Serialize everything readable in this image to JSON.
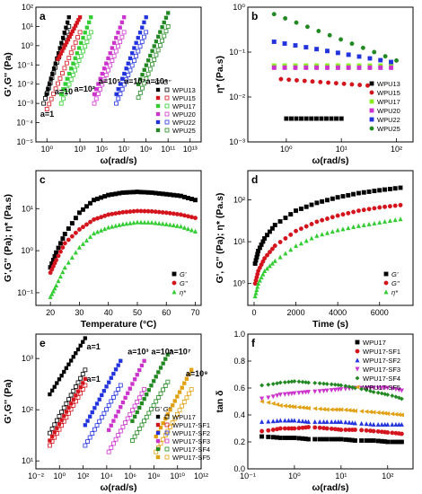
{
  "figure": {
    "panels": [
      "a",
      "b",
      "c",
      "d",
      "e",
      "f"
    ]
  },
  "chart_data": [
    {
      "panel": "a",
      "type": "scatter",
      "xlabel": "ω(rad/s)",
      "ylabel": "G',G'' (Pa)",
      "xscale": "log",
      "yscale": "log",
      "xlim": [
        0.1,
        100000000000000.0
      ],
      "ylim": [
        1e-05,
        100
      ],
      "xticks": [
        {
          "v": 1,
          "t": "10⁰"
        },
        {
          "v": 1000,
          "t": "10³"
        },
        {
          "v": 100000.0,
          "t": "10⁵"
        },
        {
          "v": 10000000.0,
          "t": "10⁷"
        },
        {
          "v": 1000000000.0,
          "t": "10⁹"
        },
        {
          "v": 100000000000.0,
          "t": "10¹¹"
        },
        {
          "v": 10000000000000.0,
          "t": "10¹³"
        }
      ],
      "yticks": [
        {
          "v": 1e-05,
          "t": "10⁻⁵"
        },
        {
          "v": 0.0001,
          "t": "10⁻⁴"
        },
        {
          "v": 0.001,
          "t": "10⁻³"
        },
        {
          "v": 0.01,
          "t": "10⁻²"
        },
        {
          "v": 0.1,
          "t": "10⁻¹"
        },
        {
          "v": 1,
          "t": "10⁰"
        },
        {
          "v": 10,
          "t": "10¹"
        },
        {
          "v": 100,
          "t": "10²"
        }
      ],
      "legend": {
        "position": "right",
        "headers": [
          "G'",
          "G''"
        ]
      },
      "annotations": [
        {
          "text": "a=1",
          "x": 0.25,
          "y": 0.0002
        },
        {
          "text": "a=10",
          "x": 5,
          "y": 0.003
        },
        {
          "text": "a=10²",
          "x": 300,
          "y": 0.004
        },
        {
          "text": "a=10⁵",
          "x": 50000.0,
          "y": 0.01
        },
        {
          "text": "a=10⁷",
          "x": 10000000.0,
          "y": 0.01
        },
        {
          "text": "a=10⁹",
          "x": 1000000000.0,
          "y": 0.01
        }
      ],
      "series": [
        {
          "name": "WPU13",
          "color": "#000000",
          "shift": 1,
          "gp": {
            "x0": 0.9,
            "x1": 100,
            "y0": 0.003,
            "y1": 30
          },
          "gpp": {
            "x0": 0.5,
            "x1": 100,
            "y0": 0.001,
            "y1": 10
          }
        },
        {
          "name": "WPU15",
          "color": "#d4141c",
          "shift": 10,
          "gp": {
            "x0": 1,
            "x1": 100,
            "y0": 0.2,
            "y1": 30
          },
          "gpp": {
            "x0": 0.1,
            "x1": 100,
            "y0": 0.0005,
            "y1": 5
          }
        },
        {
          "name": "WPU17",
          "color": "#33cc33",
          "shift": 100,
          "gp": {
            "x0": 0.2,
            "x1": 100,
            "y0": 0.003,
            "y1": 30
          },
          "gpp": {
            "x0": 0.2,
            "x1": 100,
            "y0": 0.001,
            "y1": 5
          }
        },
        {
          "name": "WPU20",
          "color": "#cc33cc",
          "shift": 100000,
          "gp": {
            "x0": 0.2,
            "x1": 100,
            "y0": 0.003,
            "y1": 30
          },
          "gpp": {
            "x0": 0.2,
            "x1": 100,
            "y0": 0.001,
            "y1": 5
          }
        },
        {
          "name": "WPU22",
          "color": "#2233dd",
          "shift": 10000000,
          "gp": {
            "x0": 0.2,
            "x1": 100,
            "y0": 0.003,
            "y1": 30
          },
          "gpp": {
            "x0": 0.2,
            "x1": 100,
            "y0": 0.001,
            "y1": 5
          }
        },
        {
          "name": "WPU25",
          "color": "#228822",
          "shift": 1000000000,
          "gp": {
            "x0": 0.2,
            "x1": 100,
            "y0": 0.01,
            "y1": 50
          },
          "gpp": {
            "x0": 0.2,
            "x1": 100,
            "y0": 0.002,
            "y1": 10
          }
        }
      ]
    },
    {
      "panel": "b",
      "type": "scatter",
      "xlabel": "ω(rad/s)",
      "ylabel": "η* (Pa.s)",
      "xscale": "log",
      "yscale": "log",
      "xlim": [
        0.2,
        200
      ],
      "ylim": [
        0.001,
        1
      ],
      "xticks": [
        {
          "v": 1,
          "t": "10⁰"
        },
        {
          "v": 10,
          "t": "10¹"
        },
        {
          "v": 100,
          "t": "10²"
        }
      ],
      "yticks": [
        {
          "v": 0.001,
          "t": "10⁻³"
        },
        {
          "v": 0.01,
          "t": "10⁻²"
        },
        {
          "v": 0.1,
          "t": "10⁻¹"
        },
        {
          "v": 1,
          "t": "10⁰"
        }
      ],
      "legend": {
        "position": "right"
      },
      "series": [
        {
          "name": "WPU13",
          "color": "#000000",
          "marker": "square",
          "x0": 1,
          "x1": 10,
          "y0": 0.0033,
          "y1": 0.0033
        },
        {
          "name": "WPU15",
          "color": "#d4141c",
          "marker": "circle",
          "x0": 0.8,
          "x1": 30,
          "y0": 0.025,
          "y1": 0.018
        },
        {
          "name": "WPU17",
          "color": "#88ee22",
          "marker": "square",
          "x0": 0.6,
          "x1": 80,
          "y0": 0.05,
          "y1": 0.05
        },
        {
          "name": "WPU20",
          "color": "#cc33cc",
          "marker": "square",
          "x0": 0.6,
          "x1": 80,
          "y0": 0.045,
          "y1": 0.045
        },
        {
          "name": "WPU22",
          "color": "#2233dd",
          "marker": "square",
          "x0": 0.6,
          "x1": 80,
          "y0": 0.17,
          "y1": 0.06
        },
        {
          "name": "WPU25",
          "color": "#228822",
          "marker": "circle",
          "x0": 0.6,
          "x1": 100,
          "y0": 0.7,
          "y1": 0.065
        }
      ]
    },
    {
      "panel": "c",
      "type": "scatter",
      "xlabel": "Temperature (°C)",
      "ylabel": "G',G'' (Pa); η* (Pa.s)",
      "xscale": "linear",
      "yscale": "log",
      "xlim": [
        15,
        72
      ],
      "ylim": [
        0.05,
        80
      ],
      "xticks": [
        {
          "v": 20,
          "t": "20"
        },
        {
          "v": 30,
          "t": "30"
        },
        {
          "v": 40,
          "t": "40"
        },
        {
          "v": 50,
          "t": "50"
        },
        {
          "v": 60,
          "t": "60"
        },
        {
          "v": 70,
          "t": "70"
        }
      ],
      "yticks": [
        {
          "v": 0.1,
          "t": "10⁻¹"
        },
        {
          "v": 1,
          "t": "10⁰"
        },
        {
          "v": 10,
          "t": "10¹"
        }
      ],
      "legend": {
        "position": "right"
      },
      "series": [
        {
          "name": "G'",
          "color": "#000000",
          "marker": "square",
          "x": [
            20,
            22,
            25,
            30,
            35,
            40,
            45,
            50,
            55,
            60,
            65,
            70
          ],
          "y": [
            0.4,
            0.9,
            2.5,
            8,
            16,
            21,
            24,
            25,
            24,
            22,
            20,
            16
          ]
        },
        {
          "name": "G''",
          "color": "#d4141c",
          "marker": "circle",
          "x": [
            20,
            22,
            25,
            30,
            35,
            40,
            45,
            50,
            55,
            60,
            65,
            70
          ],
          "y": [
            0.3,
            0.6,
            1.5,
            3.2,
            5.5,
            7.2,
            8.2,
            8.8,
            8.6,
            8.0,
            7.2,
            6.0
          ]
        },
        {
          "name": "η*",
          "color": "#33cc33",
          "marker": "triangle",
          "x": [
            20,
            22,
            25,
            30,
            35,
            40,
            45,
            50,
            55,
            60,
            65,
            70
          ],
          "y": [
            0.08,
            0.15,
            0.4,
            1.2,
            2.6,
            3.6,
            4.3,
            4.8,
            4.7,
            4.3,
            3.8,
            2.9
          ]
        }
      ]
    },
    {
      "panel": "d",
      "type": "scatter",
      "xlabel": "Time (s)",
      "ylabel": "G', G'' (Pa); η* (Pa.s)",
      "xscale": "linear",
      "yscale": "log",
      "xlim": [
        -300,
        7600
      ],
      "ylim": [
        0.3,
        500
      ],
      "xticks": [
        {
          "v": 0,
          "t": "0"
        },
        {
          "v": 2000,
          "t": "2000"
        },
        {
          "v": 4000,
          "t": "4000"
        },
        {
          "v": 6000,
          "t": "6000"
        }
      ],
      "yticks": [
        {
          "v": 1,
          "t": "10⁰"
        },
        {
          "v": 10,
          "t": "10¹"
        },
        {
          "v": 100,
          "t": "10²"
        }
      ],
      "legend": {
        "position": "bottom-right"
      },
      "series": [
        {
          "name": "G'",
          "color": "#000000",
          "marker": "square",
          "x": [
            50,
            200,
            500,
            1000,
            2000,
            3000,
            4000,
            5000,
            6000,
            7000
          ],
          "y": [
            3,
            6,
            12,
            25,
            55,
            85,
            115,
            145,
            170,
            195
          ]
        },
        {
          "name": "G''",
          "color": "#d4141c",
          "marker": "circle",
          "x": [
            50,
            200,
            500,
            1000,
            2000,
            3000,
            4000,
            5000,
            6000,
            7000
          ],
          "y": [
            1,
            2,
            4,
            8,
            18,
            30,
            42,
            55,
            66,
            75
          ]
        },
        {
          "name": "η*",
          "color": "#33cc33",
          "marker": "triangle",
          "x": [
            50,
            200,
            500,
            1000,
            2000,
            3000,
            4000,
            5000,
            6000,
            7000
          ],
          "y": [
            0.5,
            1,
            2,
            3.5,
            8,
            14,
            19,
            24,
            29,
            35
          ]
        }
      ]
    },
    {
      "panel": "e",
      "type": "scatter",
      "xlabel": "ω(rad/s)",
      "ylabel": "G',G'' (Pa)",
      "xscale": "log",
      "yscale": "log",
      "xlim": [
        0.01,
        1000000000000.0
      ],
      "ylim": [
        7,
        3000
      ],
      "xticks": [
        {
          "v": 0.01,
          "t": "10⁻²"
        },
        {
          "v": 1,
          "t": "10⁰"
        },
        {
          "v": 100,
          "t": "10²"
        },
        {
          "v": 10000,
          "t": "10⁴"
        },
        {
          "v": 1000000.0,
          "t": "10⁶"
        },
        {
          "v": 100000000.0,
          "t": "10⁸"
        },
        {
          "v": 10000000000.0,
          "t": "10¹⁰"
        },
        {
          "v": 1000000000000.0,
          "t": "10¹²"
        }
      ],
      "yticks": [
        {
          "v": 10,
          "t": "10¹"
        },
        {
          "v": 100,
          "t": "10²"
        },
        {
          "v": 1000,
          "t": "10³"
        }
      ],
      "legend": {
        "position": "bottom-right",
        "headers": [
          "G'",
          "G''"
        ]
      },
      "annotations": [
        {
          "text": "a=1",
          "x": 200,
          "y": 1500
        },
        {
          "text": "a=1",
          "x": 200,
          "y": 350
        },
        {
          "text": "a=10³",
          "x": 600000.0,
          "y": 1200
        },
        {
          "text": "a=10⁵",
          "x": 60000000.0,
          "y": 1200
        },
        {
          "text": "a=10⁷",
          "x": 2000000000.0,
          "y": 1200
        },
        {
          "text": "a=10⁹",
          "x": 50000000000.0,
          "y": 450
        }
      ],
      "series": [
        {
          "name": "WPU17",
          "color": "#000000",
          "shift": 1,
          "gp": {
            "x0": 0.15,
            "x1": 150,
            "y0": 200,
            "y1": 2500
          },
          "gpp": {
            "x0": 0.15,
            "x1": 150,
            "y0": 35,
            "y1": 600
          }
        },
        {
          "name": "WPU17-SF1",
          "color": "#d4141c",
          "shift": 1,
          "gp": {
            "x0": 0.15,
            "x1": 150,
            "y0": 25,
            "y1": 400
          },
          "gpp": {
            "x0": 0.15,
            "x1": 150,
            "y0": 20,
            "y1": 300
          }
        },
        {
          "name": "WPU17-SF2",
          "color": "#2233dd",
          "shift": 1000,
          "gp": {
            "x0": 0.15,
            "x1": 150,
            "y0": 50,
            "y1": 900
          },
          "gpp": {
            "x0": 0.15,
            "x1": 150,
            "y0": 20,
            "y1": 300
          }
        },
        {
          "name": "WPU17-SF3",
          "color": "#cc33cc",
          "shift": 100000,
          "gp": {
            "x0": 0.15,
            "x1": 150,
            "y0": 40,
            "y1": 900
          },
          "gpp": {
            "x0": 0.15,
            "x1": 150,
            "y0": 15,
            "y1": 250
          }
        },
        {
          "name": "WPU17-SF4",
          "color": "#228822",
          "shift": 10000000,
          "gp": {
            "x0": 0.15,
            "x1": 150,
            "y0": 60,
            "y1": 1200
          },
          "gpp": {
            "x0": 0.15,
            "x1": 150,
            "y0": 25,
            "y1": 350
          }
        },
        {
          "name": "WPU17-SF5",
          "color": "#e0a010",
          "shift": 1000000000,
          "gp": {
            "x0": 0.15,
            "x1": 150,
            "y0": 30,
            "y1": 600
          },
          "gpp": {
            "x0": 0.15,
            "x1": 150,
            "y0": 15,
            "y1": 250
          }
        }
      ]
    },
    {
      "panel": "f",
      "type": "scatter",
      "xlabel": "ω(rad/s)",
      "ylabel": "tan δ",
      "xscale": "log",
      "yscale": "linear",
      "xlim": [
        0.1,
        350
      ],
      "ylim": [
        0,
        1.0
      ],
      "xticks": [
        {
          "v": 0.1,
          "t": "10⁻¹"
        },
        {
          "v": 1,
          "t": "10⁰"
        },
        {
          "v": 10,
          "t": "10¹"
        },
        {
          "v": 100,
          "t": "10²"
        }
      ],
      "yticks": [
        {
          "v": 0,
          "t": "0.0"
        },
        {
          "v": 0.2,
          "t": "0.2"
        },
        {
          "v": 0.4,
          "t": "0.4"
        },
        {
          "v": 0.6,
          "t": "0.6"
        },
        {
          "v": 0.8,
          "t": "0.8"
        },
        {
          "v": 1.0,
          "t": "1.0"
        }
      ],
      "legend": {
        "position": "top-right"
      },
      "series": [
        {
          "name": "WPU17",
          "color": "#000000",
          "marker": "square",
          "x": [
            0.2,
            0.5,
            1,
            2,
            5,
            10,
            20,
            50,
            100,
            200
          ],
          "y": [
            0.24,
            0.23,
            0.23,
            0.22,
            0.22,
            0.22,
            0.21,
            0.21,
            0.2,
            0.2
          ]
        },
        {
          "name": "WPU17-SF1",
          "color": "#d4141c",
          "marker": "circle",
          "x": [
            0.2,
            0.5,
            1,
            2,
            5,
            10,
            20,
            50,
            100,
            200
          ],
          "y": [
            0.28,
            0.3,
            0.3,
            0.31,
            0.3,
            0.29,
            0.29,
            0.28,
            0.27,
            0.26
          ]
        },
        {
          "name": "WPU17-SF2",
          "color": "#2233dd",
          "marker": "triangle",
          "x": [
            0.2,
            0.5,
            1,
            2,
            5,
            10,
            20,
            50,
            100,
            200
          ],
          "y": [
            0.35,
            0.36,
            0.36,
            0.35,
            0.35,
            0.35,
            0.34,
            0.33,
            0.33,
            0.33
          ]
        },
        {
          "name": "WPU17-SF3",
          "color": "#cc33cc",
          "marker": "tridown",
          "x": [
            0.2,
            0.5,
            1,
            2,
            5,
            10,
            20,
            50,
            100,
            200
          ],
          "y": [
            0.52,
            0.55,
            0.56,
            0.57,
            0.58,
            0.59,
            0.6,
            0.6,
            0.6,
            0.58
          ]
        },
        {
          "name": "WPU17-SF4",
          "color": "#228822",
          "marker": "diamond",
          "x": [
            0.2,
            0.5,
            1,
            2,
            5,
            10,
            20,
            50,
            100,
            200
          ],
          "y": [
            0.62,
            0.64,
            0.65,
            0.64,
            0.63,
            0.62,
            0.6,
            0.57,
            0.55,
            0.52
          ]
        },
        {
          "name": "WPU17-SF5",
          "color": "#e0a010",
          "marker": "triangleleft",
          "x": [
            0.2,
            0.5,
            1,
            2,
            5,
            10,
            20,
            50,
            100,
            200
          ],
          "y": [
            0.5,
            0.47,
            0.46,
            0.45,
            0.44,
            0.44,
            0.43,
            0.42,
            0.41,
            0.4
          ]
        }
      ]
    }
  ]
}
